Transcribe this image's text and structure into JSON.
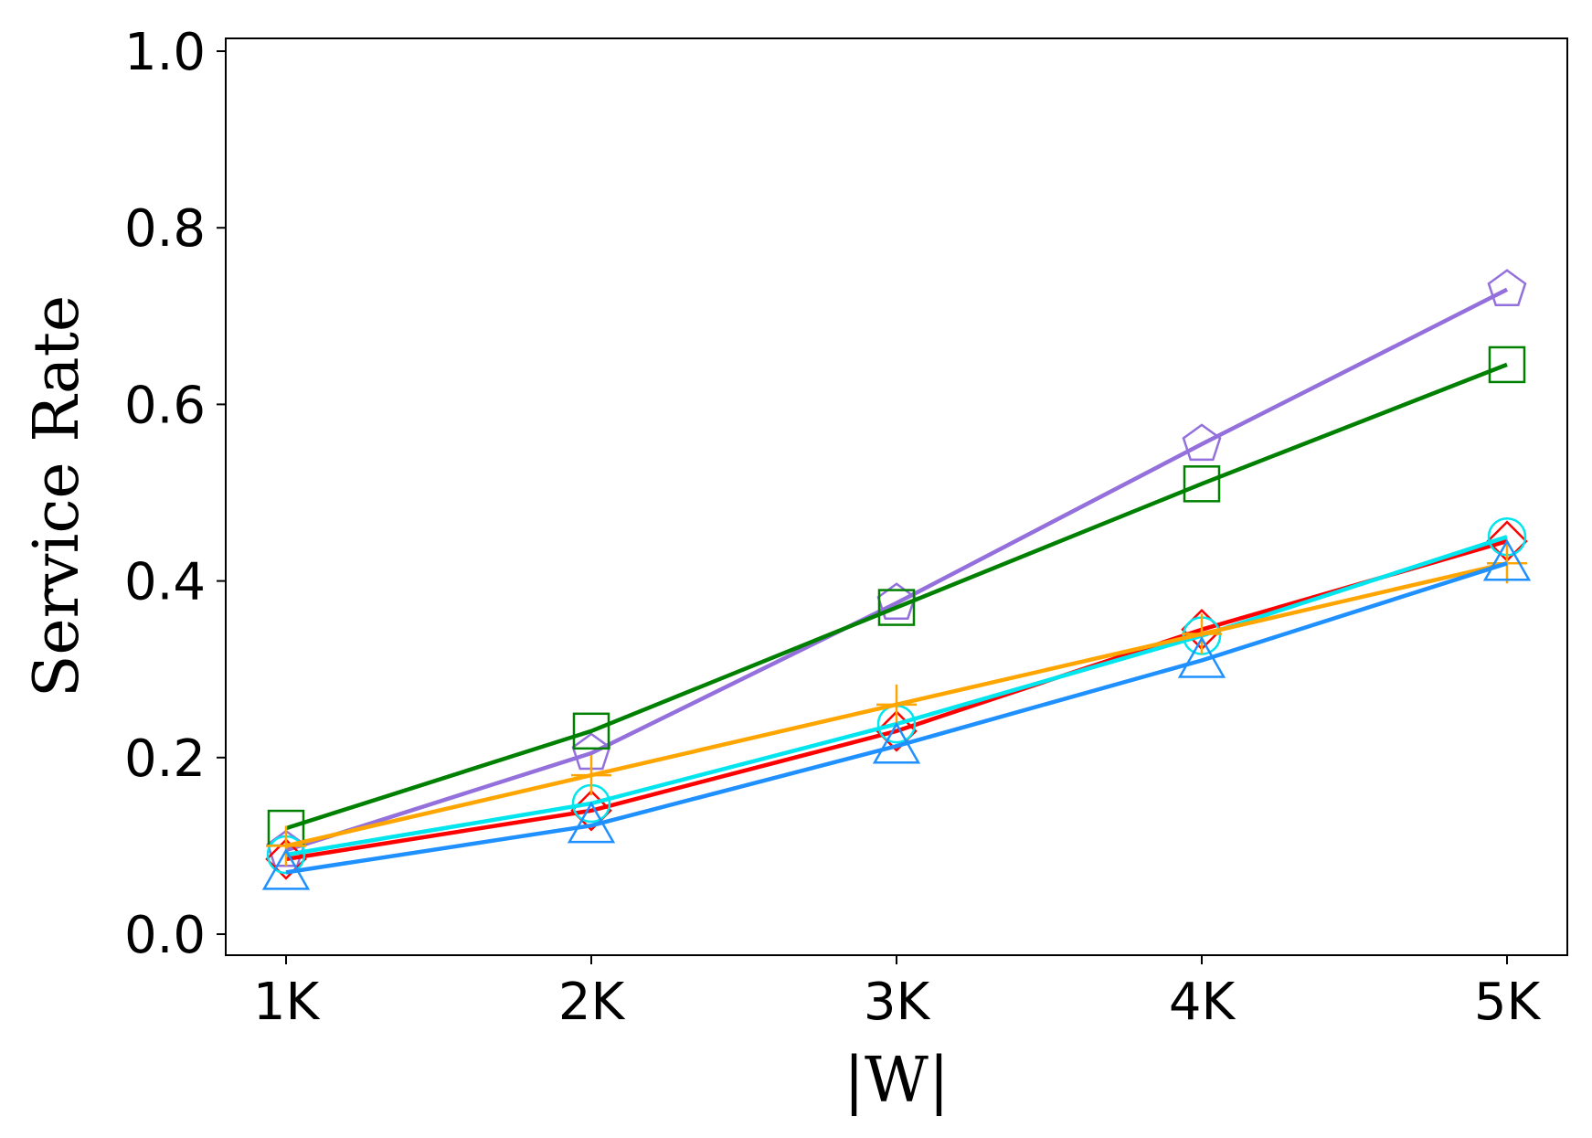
{
  "chart_data": {
    "type": "line",
    "xlabel": "|W|",
    "ylabel": "Service Rate",
    "categories": [
      "1K",
      "2K",
      "3K",
      "4K",
      "5K"
    ],
    "ylim": [
      0,
      1.0
    ],
    "yticks": [
      "0.0",
      "0.2",
      "0.4",
      "0.6",
      "0.8",
      "1.0"
    ],
    "grid": false,
    "legend": "none",
    "series": [
      {
        "color": "#9370db",
        "marker": "pentagon",
        "values": [
          0.095,
          0.205,
          0.375,
          0.555,
          0.73
        ]
      },
      {
        "color": "#008000",
        "marker": "square",
        "values": [
          0.12,
          0.23,
          0.37,
          0.51,
          0.645
        ]
      },
      {
        "color": "#ff0000",
        "marker": "diamond",
        "values": [
          0.085,
          0.14,
          0.23,
          0.345,
          0.445
        ]
      },
      {
        "color": "#00e5ee",
        "marker": "circle",
        "values": [
          0.09,
          0.148,
          0.238,
          0.338,
          0.45
        ]
      },
      {
        "color": "#ffa500",
        "marker": "plus",
        "values": [
          0.1,
          0.18,
          0.26,
          0.34,
          0.42
        ]
      },
      {
        "color": "#1e90ff",
        "marker": "triangle",
        "values": [
          0.07,
          0.123,
          0.213,
          0.31,
          0.42
        ]
      }
    ]
  }
}
